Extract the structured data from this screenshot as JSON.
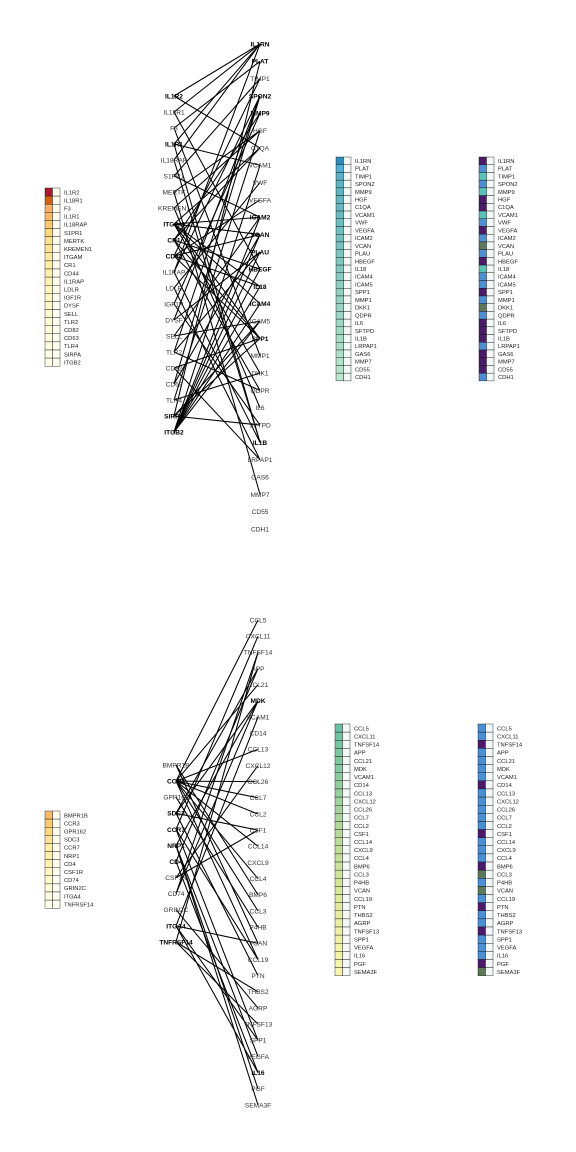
{
  "panels": [
    {
      "id": "panel-top",
      "receivers": [
        "IL1R2",
        "IL18R1",
        "F3",
        "IL1R1",
        "IL18RAP",
        "S1PR1",
        "MERTK",
        "KREMEN1",
        "ITGAM",
        "CR1",
        "CD44",
        "IL1RAP",
        "LDLR",
        "IGF1R",
        "DYSF",
        "SELL",
        "TLR2",
        "CD82",
        "CD63",
        "TLR4",
        "SIRPA",
        "ITGB2"
      ],
      "receiver_bold": [
        "IL1R2",
        "IL1R1",
        "ITGAM",
        "CR1",
        "CD44",
        "SIRPA",
        "ITGB2"
      ],
      "receiver_colors": [
        "#b2182b",
        "#d95f0e",
        "#fdae61",
        "#fdb863",
        "#fdc96b",
        "#fed976",
        "#fee08b",
        "#fee391",
        "#fee89b",
        "#ffeda0",
        "#fff0a8",
        "#fff3b0",
        "#fff5b8",
        "#fff7bf",
        "#fff8c5",
        "#fffacb",
        "#fffbd1",
        "#fffcd6",
        "#fffddb",
        "#fffde0",
        "#fffee4",
        "#fffee8"
      ],
      "ligands": [
        "IL1RN",
        "PLAT",
        "TIMP1",
        "SPON2",
        "MMP9",
        "HGF",
        "C1QA",
        "VCAM1",
        "VWF",
        "VEGFA",
        "ICAM2",
        "VCAN",
        "PLAU",
        "HBEGF",
        "IL18",
        "ICAM4",
        "ICAM5",
        "SPP1",
        "MMP1",
        "DKK1",
        "QDPR",
        "IL6",
        "SFTPD",
        "IL1B",
        "LRPAP1",
        "GAS6",
        "MMP7",
        "CD55",
        "CDH1"
      ],
      "ligand_bold": [
        "IL1RN",
        "PLAT",
        "SPON2",
        "MMP9",
        "ICAM2",
        "VCAN",
        "PLAU",
        "HBEGF",
        "IL18",
        "ICAM4",
        "SPP1",
        "IL1B"
      ],
      "ligand_colors_a": [
        "#2b8cbe",
        "#4eb3d3",
        "#56b1c6",
        "#5ab4c2",
        "#5cb6c0",
        "#60b8c0",
        "#64bac0",
        "#66bcbf",
        "#6abebf",
        "#6ec0bf",
        "#72c2bf",
        "#76c4bf",
        "#7ac6bf",
        "#7ec8bf",
        "#82cac0",
        "#86ccc0",
        "#8acec1",
        "#8ed0c1",
        "#92d2c2",
        "#96d4c3",
        "#9ad6c3",
        "#9ed8c4",
        "#a2dac5",
        "#a6dcc6",
        "#aadec7",
        "#aee0c8",
        "#b2e2c9",
        "#b6e4ca",
        "#bae6cb"
      ],
      "ligand_colors_b": [
        "#4d1a6b",
        "#4a90d9",
        "#55c4b8",
        "#4a90d9",
        "#55c4b8",
        "#4d1a6b",
        "#4d1a6b",
        "#55c4b8",
        "#4a90d9",
        "#4d1a6b",
        "#4a90d9",
        "#5a7a5a",
        "#4a90d9",
        "#4d1a6b",
        "#55c4b8",
        "#4a90d9",
        "#4a90d9",
        "#4d1a6b",
        "#4a90d9",
        "#5a7a5a",
        "#4a90d9",
        "#4d1a6b",
        "#4d1a6b",
        "#4d1a6b",
        "#4a90d9",
        "#4d1a6b",
        "#4d1a6b",
        "#4d1a6b",
        "#4a90d9"
      ],
      "edges": [
        [
          0,
          0
        ],
        [
          0,
          6
        ],
        [
          1,
          0
        ],
        [
          1,
          13
        ],
        [
          2,
          1
        ],
        [
          2,
          18
        ],
        [
          3,
          0
        ],
        [
          3,
          23
        ],
        [
          3,
          7
        ],
        [
          4,
          0
        ],
        [
          4,
          23
        ],
        [
          5,
          2
        ],
        [
          5,
          10
        ],
        [
          6,
          5
        ],
        [
          6,
          26
        ],
        [
          7,
          5
        ],
        [
          7,
          21
        ],
        [
          8,
          6
        ],
        [
          8,
          10
        ],
        [
          8,
          11
        ],
        [
          8,
          14
        ],
        [
          8,
          15
        ],
        [
          8,
          17
        ],
        [
          8,
          19
        ],
        [
          9,
          6
        ],
        [
          9,
          4
        ],
        [
          9,
          13
        ],
        [
          9,
          17
        ],
        [
          9,
          20
        ],
        [
          10,
          11
        ],
        [
          10,
          17
        ],
        [
          10,
          14
        ],
        [
          10,
          2
        ],
        [
          10,
          9
        ],
        [
          11,
          23
        ],
        [
          11,
          0
        ],
        [
          11,
          3
        ],
        [
          12,
          24
        ],
        [
          12,
          8
        ],
        [
          13,
          22
        ],
        [
          13,
          4
        ],
        [
          14,
          3
        ],
        [
          14,
          12
        ],
        [
          15,
          16
        ],
        [
          15,
          10
        ],
        [
          16,
          12
        ],
        [
          16,
          20
        ],
        [
          16,
          3
        ],
        [
          17,
          17
        ],
        [
          17,
          24
        ],
        [
          18,
          11
        ],
        [
          18,
          3
        ],
        [
          19,
          5
        ],
        [
          19,
          19
        ],
        [
          20,
          17
        ],
        [
          20,
          16
        ],
        [
          20,
          22
        ],
        [
          20,
          1
        ],
        [
          21,
          10
        ],
        [
          21,
          11
        ],
        [
          21,
          13
        ],
        [
          21,
          14
        ],
        [
          21,
          15
        ],
        [
          21,
          16
        ],
        [
          21,
          12
        ],
        [
          21,
          7
        ]
      ]
    },
    {
      "id": "panel-bottom",
      "receivers": [
        "BMPR1B",
        "CCR3",
        "GPR162",
        "SDC3",
        "CCR7",
        "NRP1",
        "CD4",
        "CSF1R",
        "CD74",
        "GRIN2C",
        "ITGA4",
        "TNFRSF14"
      ],
      "receiver_bold": [
        "CCR3",
        "SDC3",
        "CCR7",
        "NRP1",
        "CD4",
        "ITGA4",
        "TNFRSF14"
      ],
      "receiver_colors": [
        "#fdb863",
        "#fdc96b",
        "#fed976",
        "#fee391",
        "#ffeda0",
        "#fff0a8",
        "#fff3b0",
        "#fff7bf",
        "#fffacb",
        "#fffcd6",
        "#fffde0",
        "#fffee8"
      ],
      "ligands": [
        "CCL5",
        "CXCL11",
        "TNFSF14",
        "APP",
        "CCL21",
        "MDK",
        "VCAM1",
        "CD14",
        "CCL13",
        "CXCL12",
        "CCL26",
        "CCL7",
        "CCL2",
        "CSF1",
        "CCL14",
        "CXCL9",
        "CCL4",
        "BMP6",
        "CCL3",
        "P4HB",
        "VCAN",
        "CCL19",
        "PTN",
        "THBS2",
        "AGRP",
        "TNFSF13",
        "SPP1",
        "VEGFA",
        "IL16",
        "PGF",
        "SEMA3F"
      ],
      "ligand_bold": [
        "MDK",
        "IL16"
      ],
      "ligand_colors_a": [
        "#66c2a4",
        "#6cc4a3",
        "#72c7a2",
        "#78c9a1",
        "#7eca9f",
        "#84cc9e",
        "#8acd9d",
        "#90cf9c",
        "#96d19b",
        "#9cd39a",
        "#a2d599",
        "#a8d798",
        "#aed997",
        "#b4db97",
        "#badd96",
        "#c0df96",
        "#c5e196",
        "#cae396",
        "#cfe596",
        "#d4e797",
        "#d9e998",
        "#deeb99",
        "#e2ec9a",
        "#e6ee9b",
        "#eaef9d",
        "#eef19f",
        "#f1f2a1",
        "#f3f3a3",
        "#f5f4a5",
        "#f7f5a8",
        "#f9f6ab"
      ],
      "ligand_colors_b": [
        "#4a90d9",
        "#4a90d9",
        "#4d1a6b",
        "#4a90d9",
        "#4a90d9",
        "#4a90d9",
        "#4a90d9",
        "#4d1a6b",
        "#4a90d9",
        "#4a90d9",
        "#4a90d9",
        "#4a90d9",
        "#4a90d9",
        "#4d1a6b",
        "#4a90d9",
        "#4a90d9",
        "#4a90d9",
        "#4d1a6b",
        "#5a7a5a",
        "#4a90d9",
        "#5a7a5a",
        "#4a90d9",
        "#4d1a6b",
        "#4a90d9",
        "#4a90d9",
        "#4d1a6b",
        "#4a90d9",
        "#4a90d9",
        "#4a90d9",
        "#4d1a6b",
        "#5a7a5a"
      ],
      "edges": [
        [
          0,
          17
        ],
        [
          0,
          20
        ],
        [
          1,
          0
        ],
        [
          1,
          4
        ],
        [
          1,
          8
        ],
        [
          1,
          10
        ],
        [
          1,
          11
        ],
        [
          1,
          12
        ],
        [
          1,
          14
        ],
        [
          1,
          16
        ],
        [
          1,
          18
        ],
        [
          1,
          21
        ],
        [
          2,
          19
        ],
        [
          3,
          22
        ],
        [
          3,
          3
        ],
        [
          3,
          5
        ],
        [
          3,
          13
        ],
        [
          4,
          21
        ],
        [
          4,
          1
        ],
        [
          4,
          26
        ],
        [
          5,
          27
        ],
        [
          5,
          29
        ],
        [
          5,
          30
        ],
        [
          5,
          5
        ],
        [
          6,
          3
        ],
        [
          6,
          28
        ],
        [
          7,
          13
        ],
        [
          7,
          9
        ],
        [
          8,
          5
        ],
        [
          8,
          2
        ],
        [
          9,
          24
        ],
        [
          10,
          6
        ],
        [
          10,
          26
        ],
        [
          10,
          28
        ],
        [
          10,
          20
        ],
        [
          11,
          25
        ],
        [
          11,
          2
        ],
        [
          11,
          23
        ]
      ]
    }
  ]
}
